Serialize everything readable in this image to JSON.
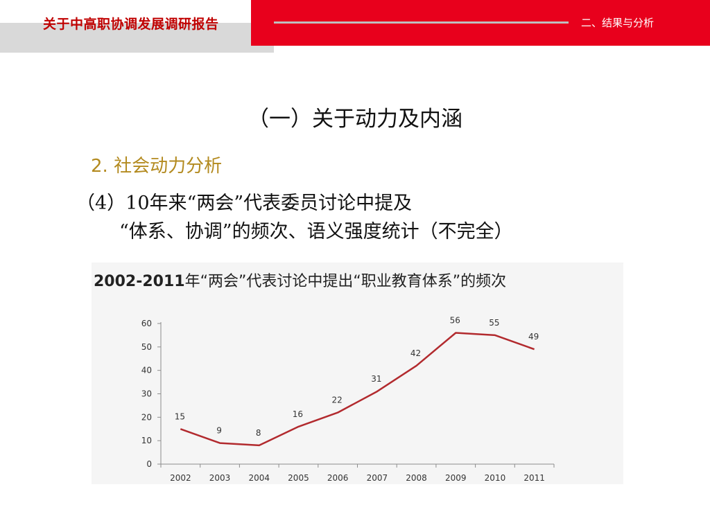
{
  "header": {
    "title": "关于中高职协调发展调研报告",
    "section": "二、结果与分析",
    "accent_color": "#e8001c",
    "title_color": "#c00000"
  },
  "slide": {
    "title": "（一）关于动力及内涵",
    "subheading": "2. 社会动力分析",
    "point_line1": "（4）10年来“两会”代表委员讨论中提及",
    "point_line2": "“体系、协调”的频次、语义强度统计（不完全）"
  },
  "chart_data": {
    "type": "line",
    "title_year": "2002-2011",
    "title_rest": "年“两会”代表讨论中提出“职业教育体系”的频次",
    "categories": [
      "2002",
      "2003",
      "2004",
      "2005",
      "2006",
      "2007",
      "2008",
      "2009",
      "2010",
      "2011"
    ],
    "values": [
      15,
      9,
      8,
      16,
      22,
      31,
      42,
      56,
      55,
      49
    ],
    "ylim": [
      0,
      60
    ],
    "yticks": [
      0,
      10,
      20,
      30,
      40,
      50,
      60
    ],
    "data_labels": true,
    "grid": false,
    "legend": "none",
    "line_color": "#b22a2e"
  }
}
